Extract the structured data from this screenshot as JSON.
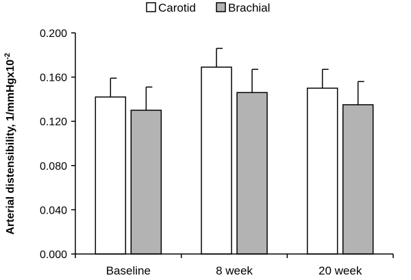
{
  "chart_data": {
    "type": "bar",
    "title": "",
    "xlabel": "",
    "ylabel": "Arterial distensibility, 1/mmHgx10",
    "ylabel_superscript": "-2",
    "categories": [
      "Baseline",
      "8 week",
      "20 week"
    ],
    "series": [
      {
        "name": "Carotid",
        "values": [
          0.142,
          0.169,
          0.15
        ],
        "errors": [
          0.017,
          0.017,
          0.017
        ],
        "color": "#ffffff"
      },
      {
        "name": "Brachial",
        "values": [
          0.13,
          0.146,
          0.135
        ],
        "errors": [
          0.021,
          0.021,
          0.021
        ],
        "color": "#b3b3b3"
      }
    ],
    "ylim": [
      0,
      0.2
    ],
    "yticks": [
      "0.000",
      "0.040",
      "0.080",
      "0.120",
      "0.160",
      "0.200"
    ],
    "ytick_values": [
      0,
      0.04,
      0.08,
      0.12,
      0.16,
      0.2
    ],
    "grid": false,
    "legend_position": "top"
  }
}
